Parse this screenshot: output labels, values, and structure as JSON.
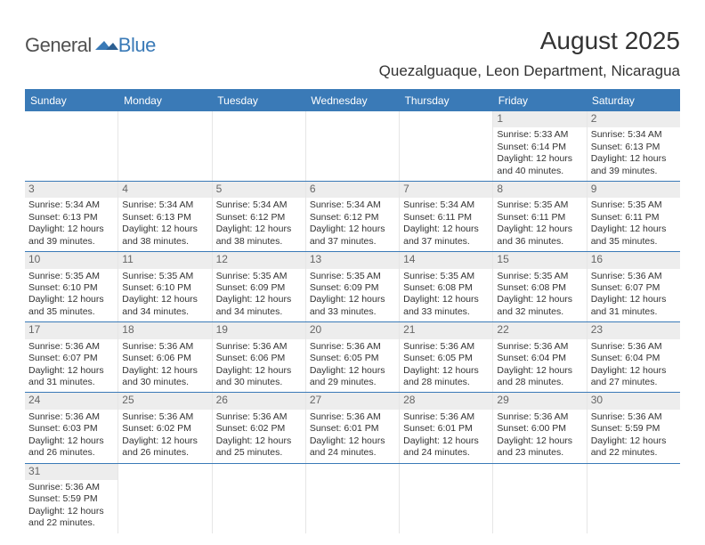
{
  "colors": {
    "brand_blue": "#3a7ab7",
    "header_bg": "#3a7ab7",
    "header_text": "#ffffff",
    "rule": "#3a7ab7",
    "daynum_bg": "#ededed",
    "daynum_text": "#666666",
    "cell_border": "#e6e6e6",
    "text": "#333333",
    "background": "#ffffff"
  },
  "logo": {
    "general": "General",
    "blue": "Blue"
  },
  "title": "August 2025",
  "location": "Quezalguaque, Leon Department, Nicaragua",
  "day_names": [
    "Sunday",
    "Monday",
    "Tuesday",
    "Wednesday",
    "Thursday",
    "Friday",
    "Saturday"
  ],
  "weeks": [
    [
      null,
      null,
      null,
      null,
      null,
      {
        "n": "1",
        "sr": "Sunrise: 5:33 AM",
        "ss": "Sunset: 6:14 PM",
        "d1": "Daylight: 12 hours",
        "d2": "and 40 minutes."
      },
      {
        "n": "2",
        "sr": "Sunrise: 5:34 AM",
        "ss": "Sunset: 6:13 PM",
        "d1": "Daylight: 12 hours",
        "d2": "and 39 minutes."
      }
    ],
    [
      {
        "n": "3",
        "sr": "Sunrise: 5:34 AM",
        "ss": "Sunset: 6:13 PM",
        "d1": "Daylight: 12 hours",
        "d2": "and 39 minutes."
      },
      {
        "n": "4",
        "sr": "Sunrise: 5:34 AM",
        "ss": "Sunset: 6:13 PM",
        "d1": "Daylight: 12 hours",
        "d2": "and 38 minutes."
      },
      {
        "n": "5",
        "sr": "Sunrise: 5:34 AM",
        "ss": "Sunset: 6:12 PM",
        "d1": "Daylight: 12 hours",
        "d2": "and 38 minutes."
      },
      {
        "n": "6",
        "sr": "Sunrise: 5:34 AM",
        "ss": "Sunset: 6:12 PM",
        "d1": "Daylight: 12 hours",
        "d2": "and 37 minutes."
      },
      {
        "n": "7",
        "sr": "Sunrise: 5:34 AM",
        "ss": "Sunset: 6:11 PM",
        "d1": "Daylight: 12 hours",
        "d2": "and 37 minutes."
      },
      {
        "n": "8",
        "sr": "Sunrise: 5:35 AM",
        "ss": "Sunset: 6:11 PM",
        "d1": "Daylight: 12 hours",
        "d2": "and 36 minutes."
      },
      {
        "n": "9",
        "sr": "Sunrise: 5:35 AM",
        "ss": "Sunset: 6:11 PM",
        "d1": "Daylight: 12 hours",
        "d2": "and 35 minutes."
      }
    ],
    [
      {
        "n": "10",
        "sr": "Sunrise: 5:35 AM",
        "ss": "Sunset: 6:10 PM",
        "d1": "Daylight: 12 hours",
        "d2": "and 35 minutes."
      },
      {
        "n": "11",
        "sr": "Sunrise: 5:35 AM",
        "ss": "Sunset: 6:10 PM",
        "d1": "Daylight: 12 hours",
        "d2": "and 34 minutes."
      },
      {
        "n": "12",
        "sr": "Sunrise: 5:35 AM",
        "ss": "Sunset: 6:09 PM",
        "d1": "Daylight: 12 hours",
        "d2": "and 34 minutes."
      },
      {
        "n": "13",
        "sr": "Sunrise: 5:35 AM",
        "ss": "Sunset: 6:09 PM",
        "d1": "Daylight: 12 hours",
        "d2": "and 33 minutes."
      },
      {
        "n": "14",
        "sr": "Sunrise: 5:35 AM",
        "ss": "Sunset: 6:08 PM",
        "d1": "Daylight: 12 hours",
        "d2": "and 33 minutes."
      },
      {
        "n": "15",
        "sr": "Sunrise: 5:35 AM",
        "ss": "Sunset: 6:08 PM",
        "d1": "Daylight: 12 hours",
        "d2": "and 32 minutes."
      },
      {
        "n": "16",
        "sr": "Sunrise: 5:36 AM",
        "ss": "Sunset: 6:07 PM",
        "d1": "Daylight: 12 hours",
        "d2": "and 31 minutes."
      }
    ],
    [
      {
        "n": "17",
        "sr": "Sunrise: 5:36 AM",
        "ss": "Sunset: 6:07 PM",
        "d1": "Daylight: 12 hours",
        "d2": "and 31 minutes."
      },
      {
        "n": "18",
        "sr": "Sunrise: 5:36 AM",
        "ss": "Sunset: 6:06 PM",
        "d1": "Daylight: 12 hours",
        "d2": "and 30 minutes."
      },
      {
        "n": "19",
        "sr": "Sunrise: 5:36 AM",
        "ss": "Sunset: 6:06 PM",
        "d1": "Daylight: 12 hours",
        "d2": "and 30 minutes."
      },
      {
        "n": "20",
        "sr": "Sunrise: 5:36 AM",
        "ss": "Sunset: 6:05 PM",
        "d1": "Daylight: 12 hours",
        "d2": "and 29 minutes."
      },
      {
        "n": "21",
        "sr": "Sunrise: 5:36 AM",
        "ss": "Sunset: 6:05 PM",
        "d1": "Daylight: 12 hours",
        "d2": "and 28 minutes."
      },
      {
        "n": "22",
        "sr": "Sunrise: 5:36 AM",
        "ss": "Sunset: 6:04 PM",
        "d1": "Daylight: 12 hours",
        "d2": "and 28 minutes."
      },
      {
        "n": "23",
        "sr": "Sunrise: 5:36 AM",
        "ss": "Sunset: 6:04 PM",
        "d1": "Daylight: 12 hours",
        "d2": "and 27 minutes."
      }
    ],
    [
      {
        "n": "24",
        "sr": "Sunrise: 5:36 AM",
        "ss": "Sunset: 6:03 PM",
        "d1": "Daylight: 12 hours",
        "d2": "and 26 minutes."
      },
      {
        "n": "25",
        "sr": "Sunrise: 5:36 AM",
        "ss": "Sunset: 6:02 PM",
        "d1": "Daylight: 12 hours",
        "d2": "and 26 minutes."
      },
      {
        "n": "26",
        "sr": "Sunrise: 5:36 AM",
        "ss": "Sunset: 6:02 PM",
        "d1": "Daylight: 12 hours",
        "d2": "and 25 minutes."
      },
      {
        "n": "27",
        "sr": "Sunrise: 5:36 AM",
        "ss": "Sunset: 6:01 PM",
        "d1": "Daylight: 12 hours",
        "d2": "and 24 minutes."
      },
      {
        "n": "28",
        "sr": "Sunrise: 5:36 AM",
        "ss": "Sunset: 6:01 PM",
        "d1": "Daylight: 12 hours",
        "d2": "and 24 minutes."
      },
      {
        "n": "29",
        "sr": "Sunrise: 5:36 AM",
        "ss": "Sunset: 6:00 PM",
        "d1": "Daylight: 12 hours",
        "d2": "and 23 minutes."
      },
      {
        "n": "30",
        "sr": "Sunrise: 5:36 AM",
        "ss": "Sunset: 5:59 PM",
        "d1": "Daylight: 12 hours",
        "d2": "and 22 minutes."
      }
    ],
    [
      {
        "n": "31",
        "sr": "Sunrise: 5:36 AM",
        "ss": "Sunset: 5:59 PM",
        "d1": "Daylight: 12 hours",
        "d2": "and 22 minutes."
      },
      null,
      null,
      null,
      null,
      null,
      null
    ]
  ]
}
